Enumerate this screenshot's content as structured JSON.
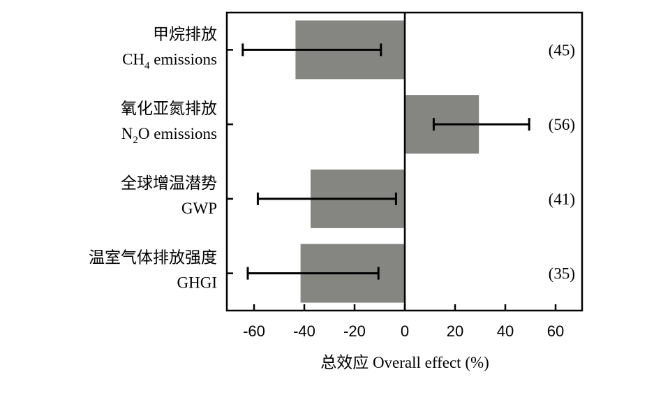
{
  "chart_data": {
    "type": "bar",
    "orientation": "horizontal",
    "xlabel": "总效应 Overall effect (%)",
    "xlim": [
      -72,
      72
    ],
    "xticks": [
      -60,
      -40,
      -20,
      0,
      20,
      40,
      60
    ],
    "xtick_labels": [
      "-60",
      "-40",
      "-20",
      "0",
      "20",
      "40",
      "60"
    ],
    "bar_color": "#858581",
    "grid": false,
    "categories": [
      {
        "label_zh": "甲烷排放",
        "label_en_main": "CH",
        "label_en_sub": "4",
        "label_en_rest": " emissions",
        "value": -43.5,
        "ci_low": -64.5,
        "ci_high": -9.5,
        "n": "(45)"
      },
      {
        "label_zh": "氧化亚氮排放",
        "label_en_main": "N",
        "label_en_sub": "2",
        "label_en_rest": "O emissions",
        "value": 29.5,
        "ci_low": 11.5,
        "ci_high": 49.5,
        "n": "(56)"
      },
      {
        "label_zh": "全球增温潜势",
        "label_en_main": "GWP",
        "label_en_sub": "",
        "label_en_rest": "",
        "value": -37.5,
        "ci_low": -58.5,
        "ci_high": -3.5,
        "n": "(41)"
      },
      {
        "label_zh": "温室气体排放强度",
        "label_en_main": "GHGI",
        "label_en_sub": "",
        "label_en_rest": "",
        "value": -41.5,
        "ci_low": -62.5,
        "ci_high": -10.5,
        "n": "(35)"
      }
    ]
  }
}
